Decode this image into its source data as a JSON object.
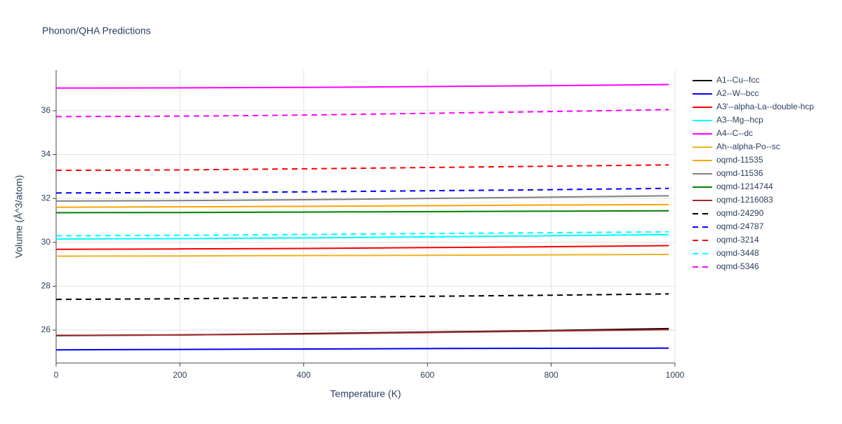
{
  "chart_data": {
    "type": "line",
    "title": "Phonon/QHA Predictions",
    "x_label": "Temperature (K)",
    "y_label": "Volume (Å^3/atom)",
    "x": [
      0,
      200,
      400,
      600,
      800,
      990
    ],
    "xlim": [
      0,
      1000
    ],
    "xticks": [
      0,
      200,
      400,
      600,
      800,
      1000
    ],
    "ylim": [
      24.5,
      37.85
    ],
    "yticks": [
      26,
      28,
      30,
      32,
      34,
      36
    ],
    "grid": true,
    "legend": "right",
    "series": [
      {
        "name": "A1--Cu--fcc",
        "color": "#000000",
        "dash": false,
        "values": [
          25.75,
          25.78,
          25.84,
          25.91,
          25.98,
          26.07
        ]
      },
      {
        "name": "A2--W--bcc",
        "color": "#0000ff",
        "dash": false,
        "values": [
          25.1,
          25.12,
          25.14,
          25.16,
          25.17,
          25.18
        ]
      },
      {
        "name": "A3'--alpha-La--double-hcp",
        "color": "#ff0000",
        "dash": false,
        "values": [
          29.68,
          29.7,
          29.72,
          29.76,
          29.8,
          29.85
        ]
      },
      {
        "name": "A3--Mg--hcp",
        "color": "#00ffff",
        "dash": false,
        "values": [
          30.15,
          30.17,
          30.2,
          30.25,
          30.3,
          30.35
        ]
      },
      {
        "name": "A4--C--dc",
        "color": "#ff00ff",
        "dash": false,
        "values": [
          37.03,
          37.04,
          37.06,
          37.1,
          37.14,
          37.19
        ]
      },
      {
        "name": "Ah--alpha-Po--sc",
        "color": "#f0b020",
        "dash": false,
        "values": [
          29.37,
          29.38,
          29.4,
          29.41,
          29.43,
          29.45
        ]
      },
      {
        "name": "oqmd-11535",
        "color": "#ffa500",
        "dash": false,
        "values": [
          31.6,
          31.62,
          31.64,
          31.67,
          31.7,
          31.72
        ]
      },
      {
        "name": "oqmd-11536",
        "color": "#808080",
        "dash": false,
        "values": [
          31.88,
          31.9,
          31.94,
          32.0,
          32.06,
          32.12
        ]
      },
      {
        "name": "oqmd-1214744",
        "color": "#008000",
        "dash": false,
        "values": [
          31.35,
          31.36,
          31.38,
          31.4,
          31.42,
          31.44
        ]
      },
      {
        "name": "oqmd-1216083",
        "color": "#a52a2a",
        "dash": false,
        "values": [
          25.76,
          25.78,
          25.82,
          25.89,
          25.96,
          26.02
        ]
      },
      {
        "name": "oqmd-24290",
        "color": "#000000",
        "dash": true,
        "values": [
          27.4,
          27.43,
          27.48,
          27.54,
          27.59,
          27.65
        ]
      },
      {
        "name": "oqmd-24787",
        "color": "#0000ff",
        "dash": true,
        "values": [
          32.25,
          32.27,
          32.3,
          32.35,
          32.4,
          32.46
        ]
      },
      {
        "name": "oqmd-3214",
        "color": "#ff0000",
        "dash": true,
        "values": [
          33.28,
          33.3,
          33.35,
          33.41,
          33.47,
          33.53
        ]
      },
      {
        "name": "oqmd-3448",
        "color": "#00ffff",
        "dash": true,
        "values": [
          30.3,
          30.32,
          30.36,
          30.4,
          30.44,
          30.48
        ]
      },
      {
        "name": "oqmd-5346",
        "color": "#ff00ff",
        "dash": true,
        "values": [
          35.73,
          35.75,
          35.8,
          35.88,
          35.96,
          36.05
        ]
      }
    ]
  }
}
